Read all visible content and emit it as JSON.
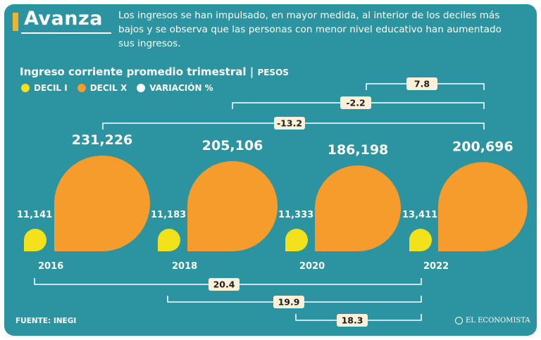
{
  "header": {
    "title": "Avanza",
    "description": "Los ingresos se han impulsado, en mayor medida, al interior de los deciles más bajos y se observa que las personas con menor nivel educativo han aumentado sus ingresos."
  },
  "subtitle": {
    "main": "Ingreso corriente promedio trimestral",
    "separator": " | ",
    "unit": "PESOS"
  },
  "legend": [
    {
      "label": "DECIL I",
      "color": "#f3e21b"
    },
    {
      "label": "DECIL X",
      "color": "#f59c2c"
    },
    {
      "label": "VARIACIÓN %",
      "color": "#ffffff"
    }
  ],
  "footer": {
    "source": "FUENTE: INEGI",
    "brand": "EL ECONOMISTA"
  },
  "colors": {
    "background": "#2b94a0",
    "decil_i": "#f3e21b",
    "decil_x": "#f59c2c",
    "accent": "#f2b42c",
    "label_box": "#fbf0d8"
  },
  "chart_data": {
    "type": "bubble",
    "title": "Ingreso corriente promedio trimestral",
    "unit": "PESOS",
    "categories": [
      "2016",
      "2018",
      "2020",
      "2022"
    ],
    "series": [
      {
        "name": "DECIL I",
        "values": [
          11141,
          11183,
          11333,
          13411
        ],
        "labels": [
          "11,141",
          "11,183",
          "11,333",
          "13,411"
        ]
      },
      {
        "name": "DECIL X",
        "values": [
          231226,
          205106,
          186198,
          200696
        ],
        "labels": [
          "231,226",
          "205,106",
          "186,198",
          "200,696"
        ]
      }
    ],
    "variations_decil_x": [
      {
        "from": "2016",
        "to": "2022",
        "value": -13.2,
        "label": "-13.2"
      },
      {
        "from": "2018",
        "to": "2022",
        "value": -2.2,
        "label": "-2.2"
      },
      {
        "from": "2020",
        "to": "2022",
        "value": 7.8,
        "label": "7.8"
      }
    ],
    "variations_decil_i": [
      {
        "from": "2016",
        "to": "2022",
        "value": 20.4,
        "label": "20.4"
      },
      {
        "from": "2018",
        "to": "2022",
        "value": 19.9,
        "label": "19.9"
      },
      {
        "from": "2020",
        "to": "2022",
        "value": 18.3,
        "label": "18.3"
      }
    ]
  }
}
